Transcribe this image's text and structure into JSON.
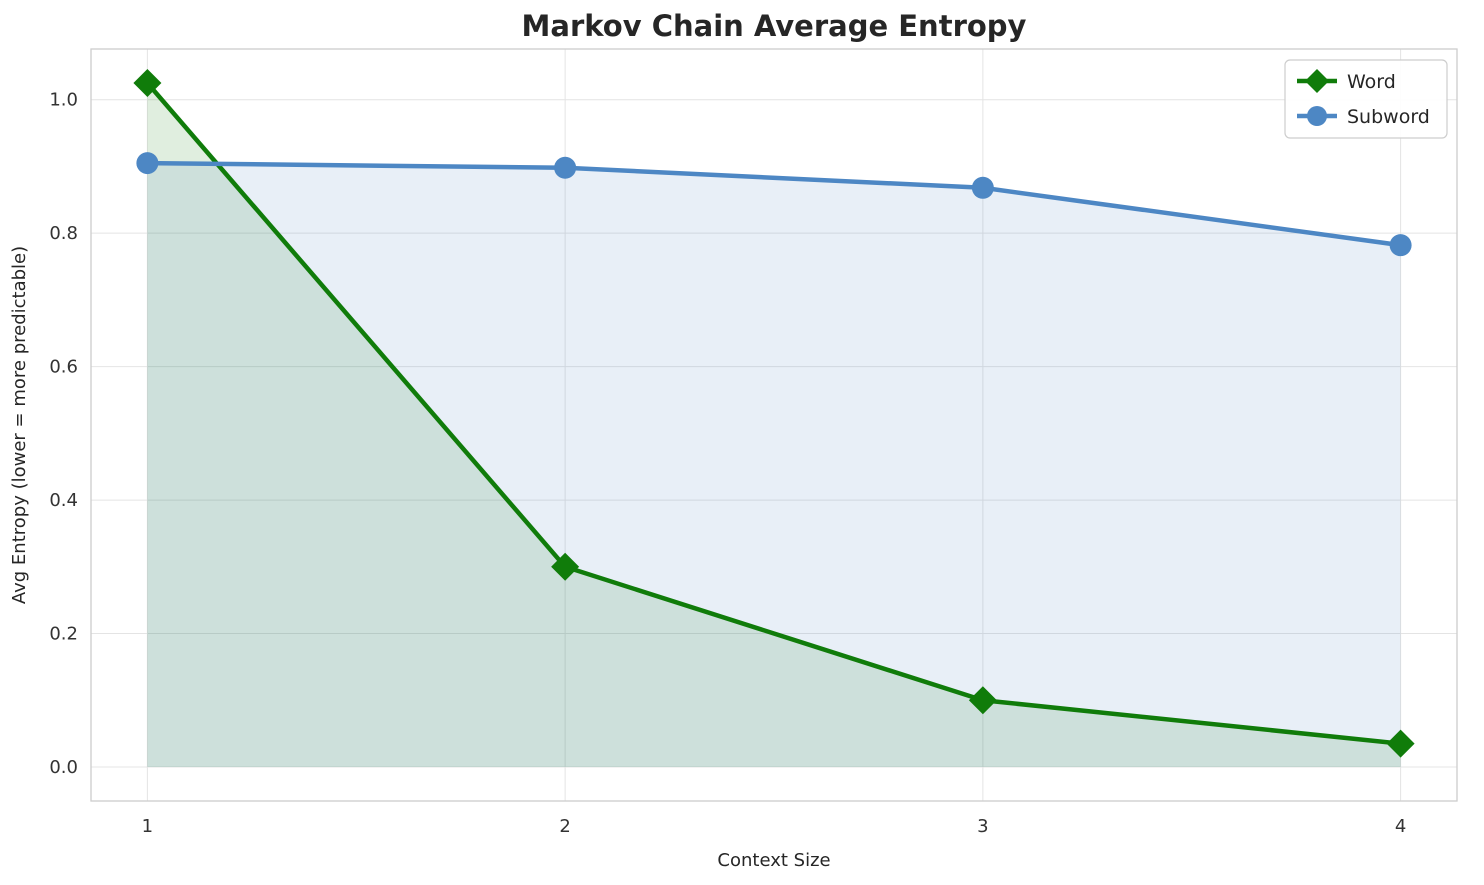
{
  "chart_data": {
    "type": "line",
    "title": "Markov Chain Average Entropy",
    "xlabel": "Context Size",
    "ylabel": "Avg Entropy (lower = more predictable)",
    "x": [
      1,
      2,
      3,
      4
    ],
    "series": [
      {
        "name": "Word",
        "values": [
          1.025,
          0.3,
          0.1,
          0.035
        ],
        "color": "#107c0a",
        "marker": "diamond",
        "fill": true
      },
      {
        "name": "Subword",
        "values": [
          0.905,
          0.898,
          0.868,
          0.782
        ],
        "color": "#4d87c4",
        "marker": "circle",
        "fill": true
      }
    ],
    "xticks": [
      1,
      2,
      3,
      4
    ],
    "yticks": [
      0.0,
      0.2,
      0.4,
      0.6,
      0.8,
      1.0
    ],
    "xlim": [
      0.865,
      4.135
    ],
    "ylim": [
      -0.051,
      1.076
    ],
    "fill_to": 0,
    "fill_opacity": 0.13,
    "grid": true,
    "legend_position": "upper right",
    "style": {
      "background": "#ffffff",
      "grid_color": "#e4e4e4",
      "border_color": "#cdcdcd",
      "text_color": "#262626"
    }
  }
}
